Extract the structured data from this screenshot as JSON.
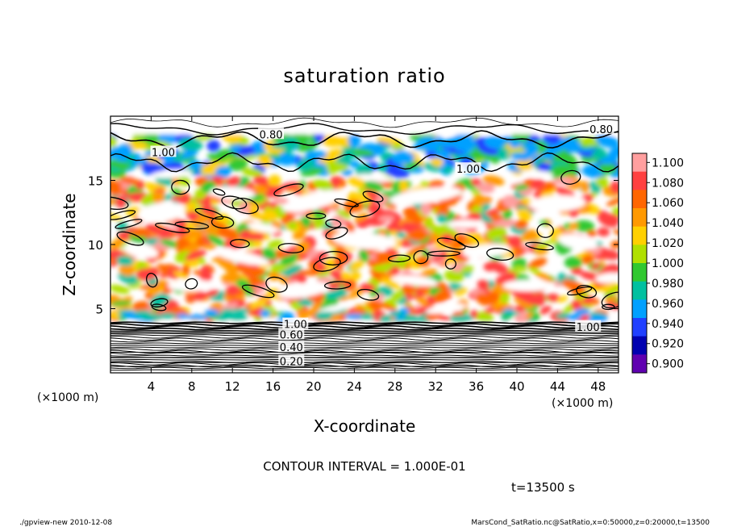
{
  "chart_data": {
    "type": "heatmap",
    "title": "saturation ratio",
    "xlabel": "X-coordinate",
    "ylabel": "Z-coordinate",
    "x_unit": "(×1000 m)",
    "y_unit": "(×1000 m)",
    "x_ticks": [
      4,
      8,
      12,
      16,
      20,
      24,
      28,
      32,
      36,
      40,
      44,
      48
    ],
    "y_ticks": [
      5,
      10,
      15
    ],
    "xlim": [
      0,
      50
    ],
    "ylim": [
      0,
      20
    ],
    "colorbar": {
      "ticks": [
        "1.100",
        "1.080",
        "1.060",
        "1.040",
        "1.020",
        "1.000",
        "0.980",
        "0.960",
        "0.940",
        "0.920",
        "0.900"
      ],
      "colors": [
        "#ff9f9f",
        "#ff4040",
        "#ff6600",
        "#ff9900",
        "#ffd000",
        "#b0e000",
        "#30c830",
        "#00c0a0",
        "#00a0ff",
        "#2040ff",
        "#0000b0",
        "#6000b0"
      ]
    },
    "contour_labels": [
      {
        "text": "0.80",
        "x": 15.8,
        "z": 18.6
      },
      {
        "text": "0.80",
        "x": 48.3,
        "z": 19.0
      },
      {
        "text": "1.00",
        "x": 5.2,
        "z": 17.2
      },
      {
        "text": "1.00",
        "x": 35.2,
        "z": 15.9
      },
      {
        "text": "1.00",
        "x": 18.2,
        "z": 3.8
      },
      {
        "text": "1.00",
        "x": 47.0,
        "z": 3.6
      },
      {
        "text": "0.60",
        "x": 17.8,
        "z": 3.0
      },
      {
        "text": "0.40",
        "x": 17.8,
        "z": 2.0
      },
      {
        "text": "0.20",
        "x": 17.8,
        "z": 0.9
      }
    ],
    "contour_interval_text": "CONTOUR INTERVAL = 1.000E-01",
    "time_text": "t=13500 s"
  },
  "footer": {
    "left": "./gpview-new  2010-12-08",
    "right": "MarsCond_SatRatio.nc@SatRatio,x=0:50000,z=0:20000,t=13500"
  }
}
